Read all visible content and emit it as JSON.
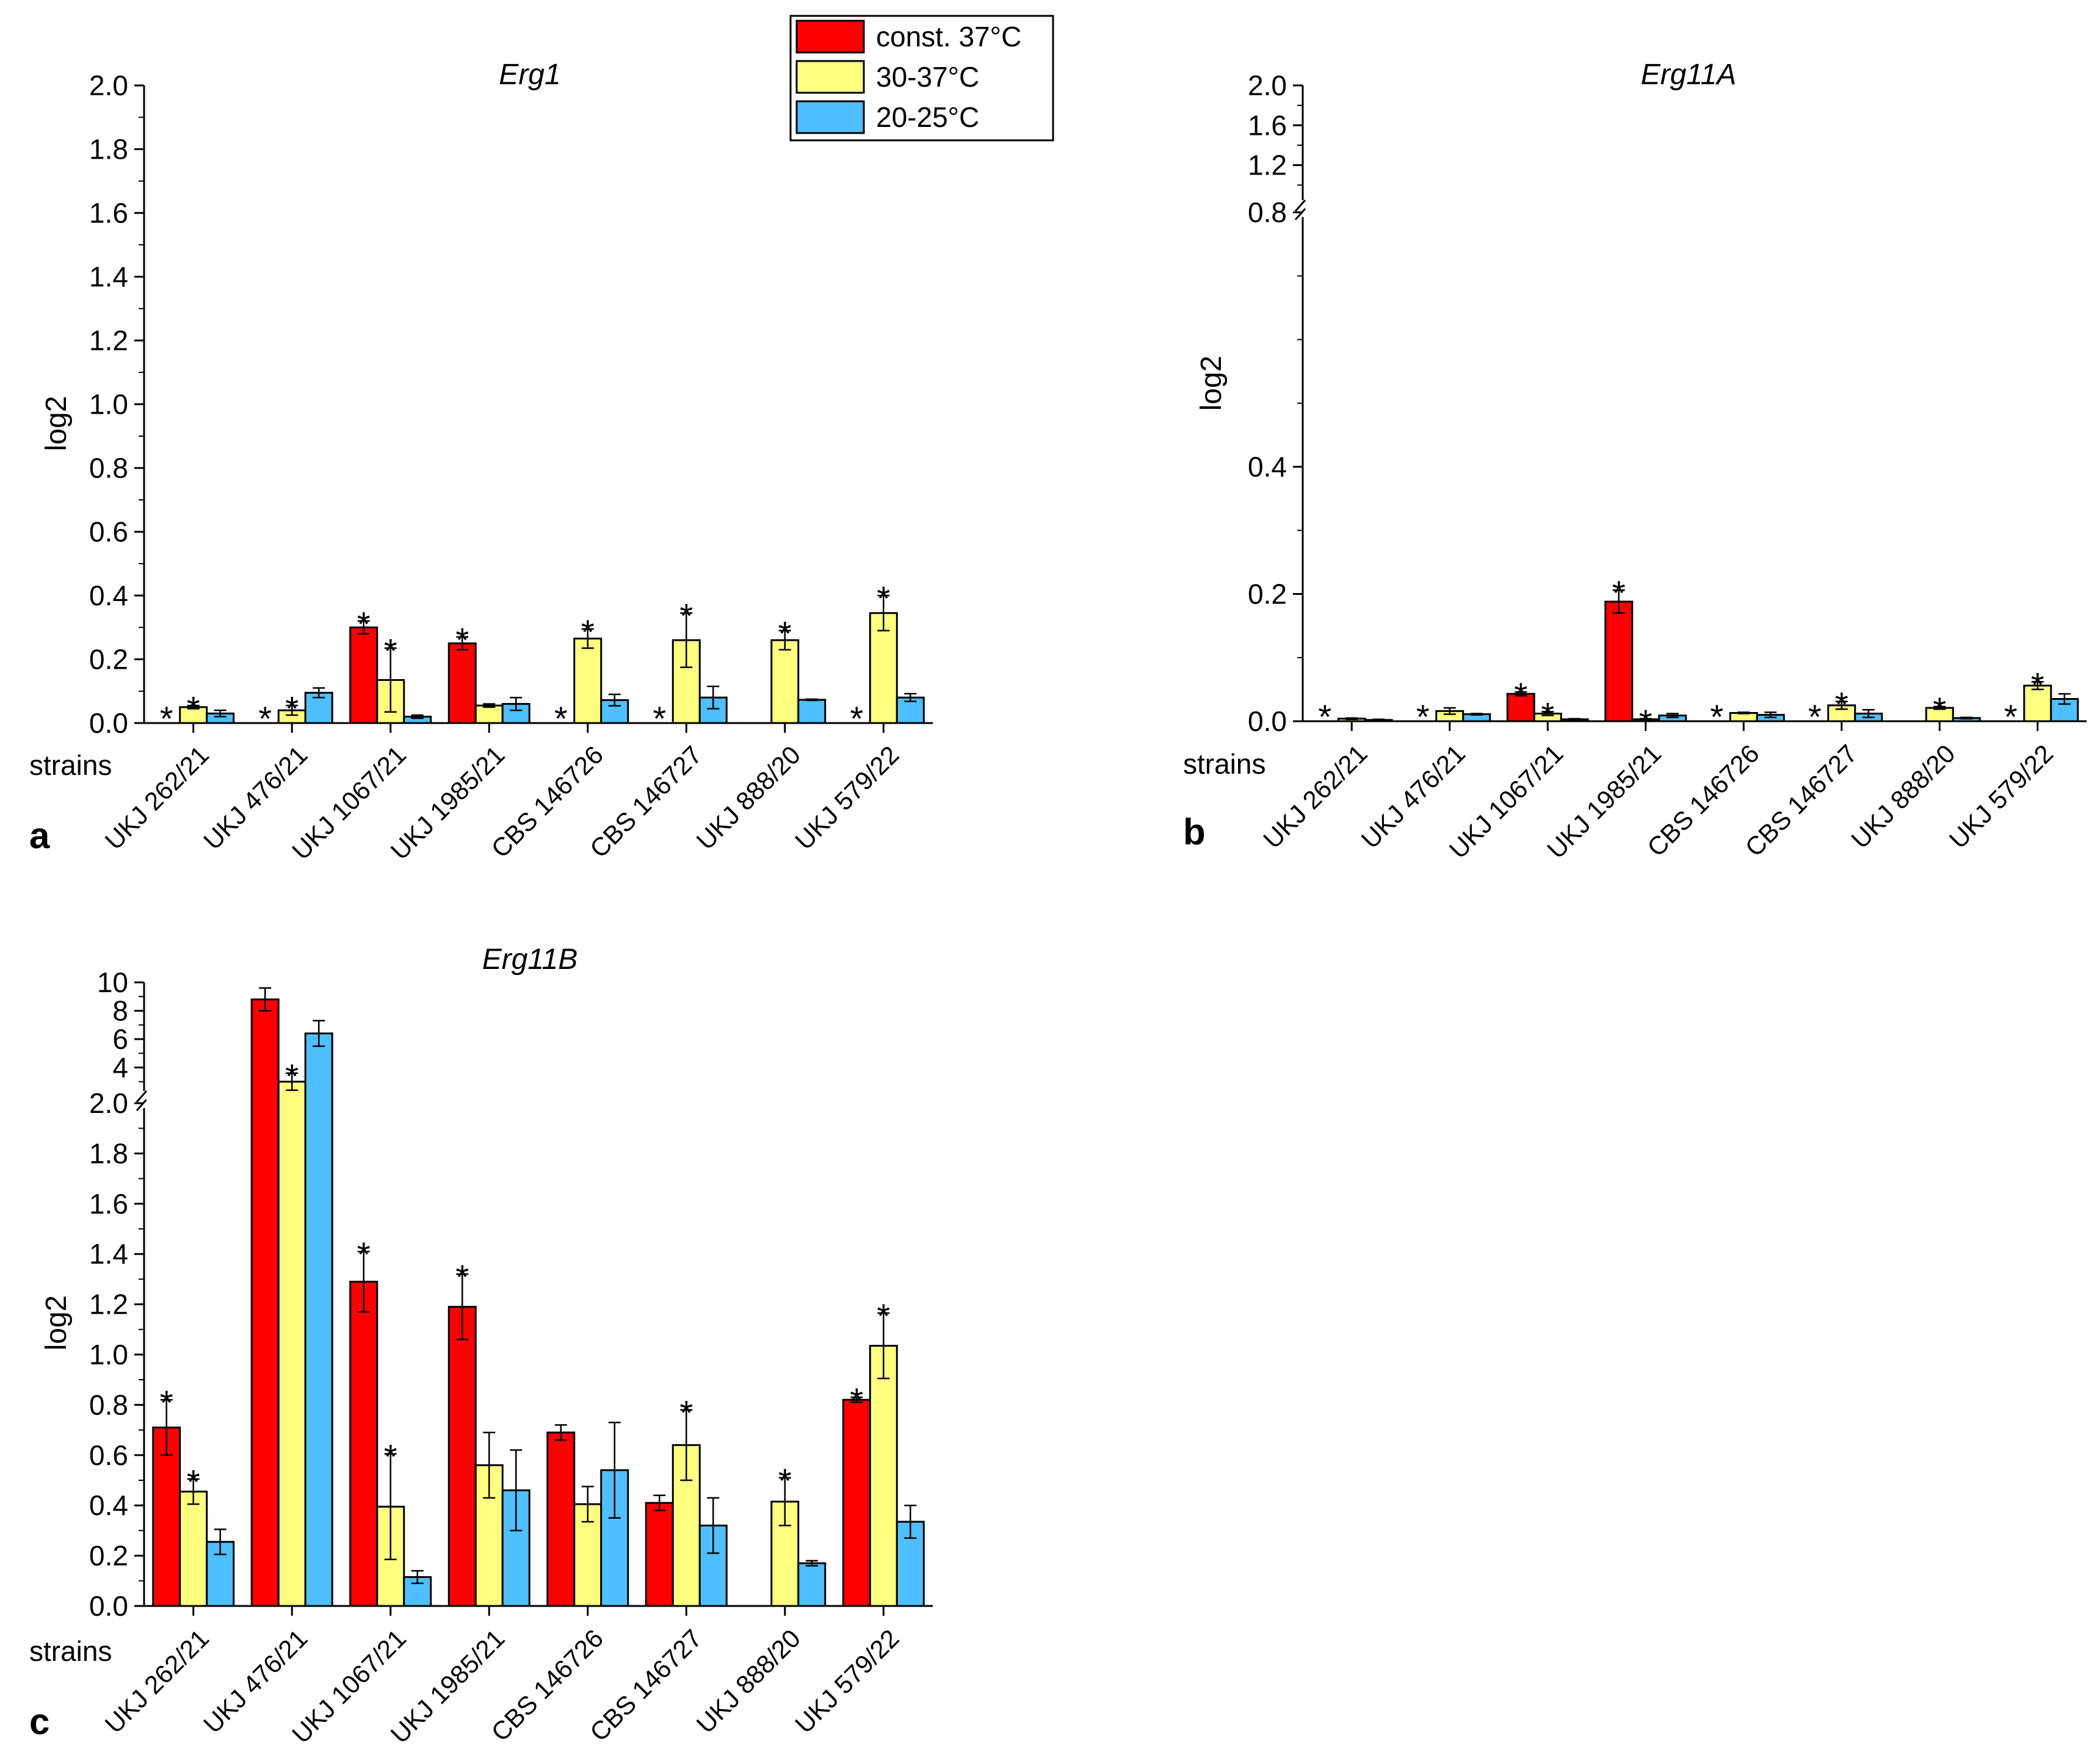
{
  "legend": {
    "entries": [
      {
        "label": "const. 37°C",
        "color": "#ff0000"
      },
      {
        "label": "30-37°C",
        "color": "#ffff80"
      },
      {
        "label": "20-25°C",
        "color": "#4fbfff"
      }
    ]
  },
  "chart_data": [
    {
      "type": "bar",
      "panel_label": "a",
      "title": "Erg1",
      "xlabel": "strains",
      "ylabel": "log2",
      "ylim": [
        0,
        2.0
      ],
      "yticks": [
        "0.0",
        "0.2",
        "0.4",
        "0.6",
        "0.8",
        "1.0",
        "1.2",
        "1.4",
        "1.6",
        "1.8",
        "2.0"
      ],
      "categories": [
        "UKJ 262/21",
        "UKJ 476/21",
        "UKJ 1067/21",
        "UKJ 1985/21",
        "CBS 146726",
        "CBS 146727",
        "UKJ 888/20",
        "UKJ 579/22"
      ],
      "series": [
        {
          "name": "const. 37°C",
          "color": "#ff0000",
          "values": [
            null,
            null,
            0.3,
            0.25,
            null,
            null,
            null,
            null
          ],
          "errors": [
            0,
            0,
            0.02,
            0.02,
            0,
            0,
            0,
            0
          ],
          "stars": [
            true,
            true,
            true,
            true,
            true,
            true,
            false,
            true
          ]
        },
        {
          "name": "30-37°C",
          "color": "#ffff80",
          "values": [
            0.05,
            0.04,
            0.135,
            0.055,
            0.265,
            0.26,
            0.26,
            0.345
          ],
          "errors": [
            0.005,
            0.015,
            0.1,
            0.005,
            0.03,
            0.085,
            0.03,
            0.055
          ],
          "stars": [
            true,
            true,
            true,
            false,
            true,
            true,
            true,
            true
          ]
        },
        {
          "name": "20-25°C",
          "color": "#4fbfff",
          "values": [
            0.03,
            0.095,
            0.02,
            0.06,
            0.072,
            0.08,
            0.073,
            0.08
          ],
          "errors": [
            0.01,
            0.015,
            0.005,
            0.02,
            0.018,
            0.035,
            0.002,
            0.012
          ],
          "stars": [
            false,
            false,
            false,
            false,
            false,
            false,
            false,
            false
          ]
        }
      ]
    },
    {
      "type": "bar",
      "panel_label": "b",
      "title": "Erg11A",
      "xlabel": "strains",
      "ylabel": "log2",
      "ylim": [
        0,
        2.0
      ],
      "axis_break": {
        "lower": [
          0,
          0.8
        ],
        "upper": [
          0.8,
          2.0
        ]
      },
      "yticks_lower": [
        "0.0",
        "0.2",
        "0.4"
      ],
      "yticks_upper": [
        "0.8",
        "1.2",
        "1.6",
        "2.0"
      ],
      "categories": [
        "UKJ 262/21",
        "UKJ 476/21",
        "UKJ 1067/21",
        "UKJ 1985/21",
        "CBS 146726",
        "CBS 146727",
        "UKJ 888/20",
        "UKJ 579/22"
      ],
      "series": [
        {
          "name": "const. 37°C",
          "color": "#ff0000",
          "values": [
            null,
            null,
            0.043,
            0.188,
            null,
            null,
            null,
            null
          ],
          "errors": [
            0,
            0,
            0.003,
            0.018,
            0,
            0,
            0,
            0
          ],
          "stars": [
            true,
            true,
            true,
            true,
            true,
            true,
            false,
            true
          ]
        },
        {
          "name": "30-37°C",
          "color": "#ffff80",
          "values": [
            0.004,
            0.016,
            0.012,
            0.003,
            0.013,
            0.025,
            0.021,
            0.056
          ],
          "errors": [
            0.001,
            0.005,
            0.003,
            0.001,
            0.001,
            0.006,
            0.002,
            0.006
          ],
          "stars": [
            false,
            false,
            true,
            true,
            false,
            true,
            true,
            true
          ]
        },
        {
          "name": "20-25°C",
          "color": "#4fbfff",
          "values": [
            0.002,
            0.011,
            0.003,
            0.009,
            0.01,
            0.012,
            0.005,
            0.035
          ],
          "errors": [
            0.001,
            0.001,
            0.001,
            0.003,
            0.004,
            0.006,
            0.001,
            0.008
          ],
          "stars": [
            false,
            false,
            false,
            false,
            false,
            false,
            false,
            false
          ]
        }
      ]
    },
    {
      "type": "bar",
      "panel_label": "c",
      "title": "Erg11B",
      "xlabel": "strains",
      "ylabel": "log2",
      "ylim": [
        0,
        10
      ],
      "axis_break": {
        "lower": [
          0,
          2.0
        ],
        "upper": [
          2.0,
          10
        ]
      },
      "yticks_lower": [
        "0.0",
        "0.2",
        "0.4",
        "0.6",
        "0.8",
        "1.0",
        "1.2",
        "1.4",
        "1.6",
        "1.8",
        "2.0"
      ],
      "yticks_upper": [
        "4",
        "6",
        "8",
        "10"
      ],
      "categories": [
        "UKJ 262/21",
        "UKJ 476/21",
        "UKJ 1067/21",
        "UKJ 1985/21",
        "CBS 146726",
        "CBS 146727",
        "UKJ 888/20",
        "UKJ 579/22"
      ],
      "series": [
        {
          "name": "const. 37°C",
          "color": "#ff0000",
          "values": [
            0.71,
            8.8,
            1.29,
            1.19,
            0.69,
            0.41,
            null,
            0.82
          ],
          "errors": [
            0.11,
            0.8,
            0.12,
            0.13,
            0.03,
            0.03,
            0,
            0.01
          ],
          "stars": [
            true,
            false,
            true,
            true,
            false,
            false,
            false,
            true
          ]
        },
        {
          "name": "30-37°C",
          "color": "#ffff80",
          "values": [
            0.455,
            3.0,
            0.395,
            0.56,
            0.405,
            0.64,
            0.415,
            1.035
          ],
          "errors": [
            0.05,
            0.6,
            0.21,
            0.13,
            0.07,
            0.14,
            0.095,
            0.13
          ],
          "stars": [
            true,
            true,
            true,
            false,
            false,
            true,
            true,
            true
          ]
        },
        {
          "name": "20-25°C",
          "color": "#4fbfff",
          "values": [
            0.255,
            6.4,
            0.115,
            0.46,
            0.54,
            0.32,
            0.17,
            0.335
          ],
          "errors": [
            0.05,
            0.9,
            0.025,
            0.16,
            0.19,
            0.11,
            0.01,
            0.065
          ],
          "stars": [
            false,
            false,
            false,
            false,
            false,
            false,
            false,
            false
          ]
        }
      ]
    }
  ]
}
